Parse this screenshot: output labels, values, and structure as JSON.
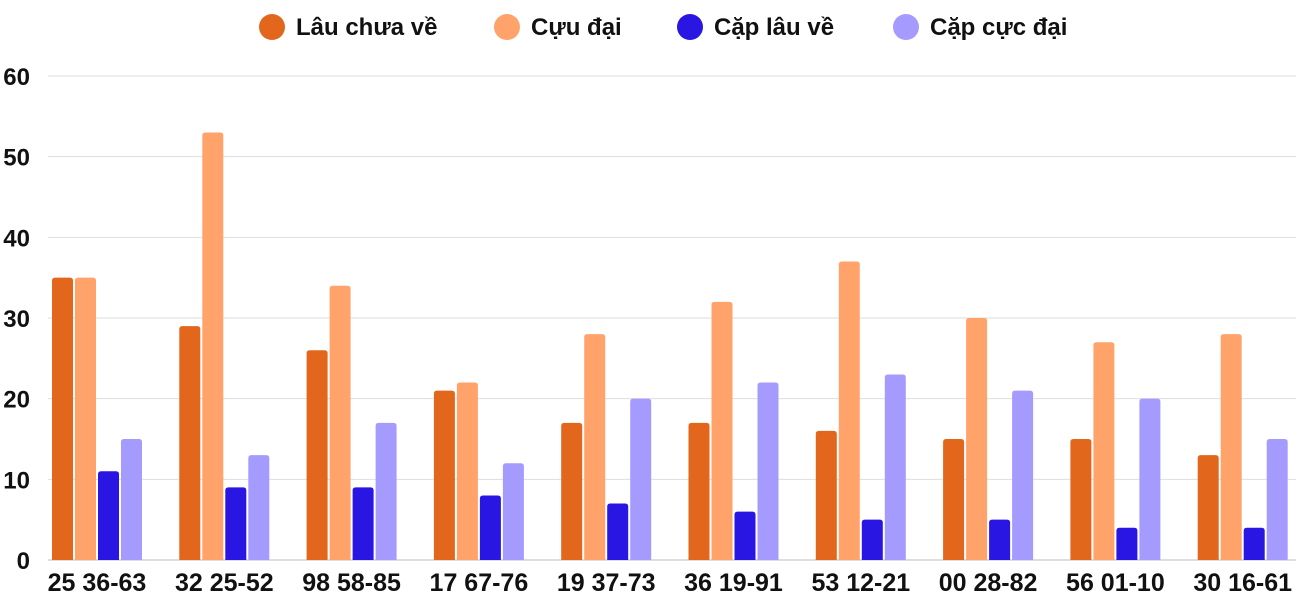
{
  "chart_data": {
    "type": "bar",
    "title": "",
    "xlabel": "",
    "ylabel": "",
    "ylim": [
      0,
      60
    ],
    "yticks": [
      0,
      10,
      20,
      30,
      40,
      50,
      60
    ],
    "grid": true,
    "legend_position": "top-center",
    "categories": [
      "25 36-63",
      "32 25-52",
      "98 58-85",
      "17 67-76",
      "19 37-73",
      "36 19-91",
      "53 12-21",
      "00 28-82",
      "56 01-10",
      "30 16-61"
    ],
    "series": [
      {
        "name": "Lâu chưa về",
        "color": "#e2661c",
        "values": [
          35,
          29,
          26,
          21,
          17,
          17,
          16,
          15,
          15,
          13
        ]
      },
      {
        "name": "Cựu đại",
        "color": "#ffa36b",
        "values": [
          35,
          53,
          34,
          22,
          28,
          32,
          37,
          30,
          27,
          28
        ]
      },
      {
        "name": "Cặp lâu về",
        "color": "#2916e2",
        "values": [
          11,
          9,
          9,
          8,
          7,
          6,
          5,
          5,
          4,
          4
        ]
      },
      {
        "name": "Cặp cực đại",
        "color": "#a59bff",
        "values": [
          15,
          13,
          17,
          12,
          20,
          22,
          23,
          21,
          20,
          15
        ]
      }
    ]
  }
}
